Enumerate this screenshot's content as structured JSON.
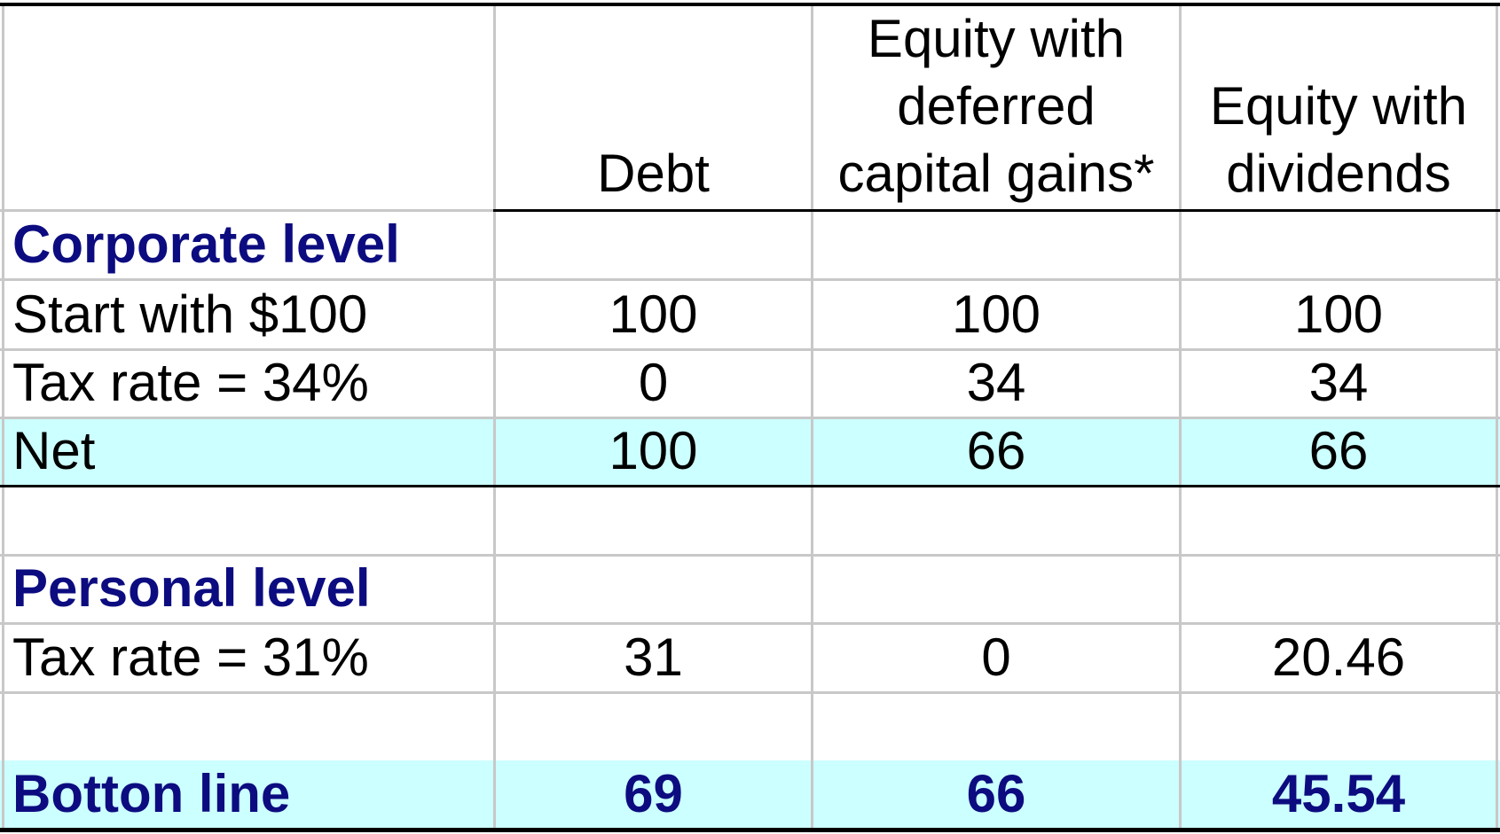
{
  "table": {
    "headers": {
      "debt": [
        "Debt"
      ],
      "deferred": [
        "Equity with",
        "deferred",
        "capital gains*"
      ],
      "dividends": [
        "Equity with",
        "dividends"
      ]
    },
    "rows": {
      "corporate_level": {
        "label": "Corporate level",
        "debt": "",
        "deferred": "",
        "dividends": ""
      },
      "start": {
        "label": "Start with $100",
        "debt": "100",
        "deferred": "100",
        "dividends": "100"
      },
      "corp_tax": {
        "label": "Tax rate = 34%",
        "debt": "0",
        "deferred": "34",
        "dividends": "34"
      },
      "net": {
        "label": "Net",
        "debt": "100",
        "deferred": "66",
        "dividends": "66"
      },
      "personal_level": {
        "label": "Personal level",
        "debt": "",
        "deferred": "",
        "dividends": ""
      },
      "personal_tax": {
        "label": "Tax rate = 31%",
        "debt": "31",
        "deferred": "0",
        "dividends": "20.46"
      },
      "bottom_line": {
        "label": "Botton line",
        "debt": "69",
        "deferred": "66",
        "dividends": "45.54"
      }
    }
  },
  "colors": {
    "section_text": "#0c0c80",
    "highlight_band": "#ccffff",
    "grid": "#c8c8c8",
    "rule": "#000000"
  }
}
